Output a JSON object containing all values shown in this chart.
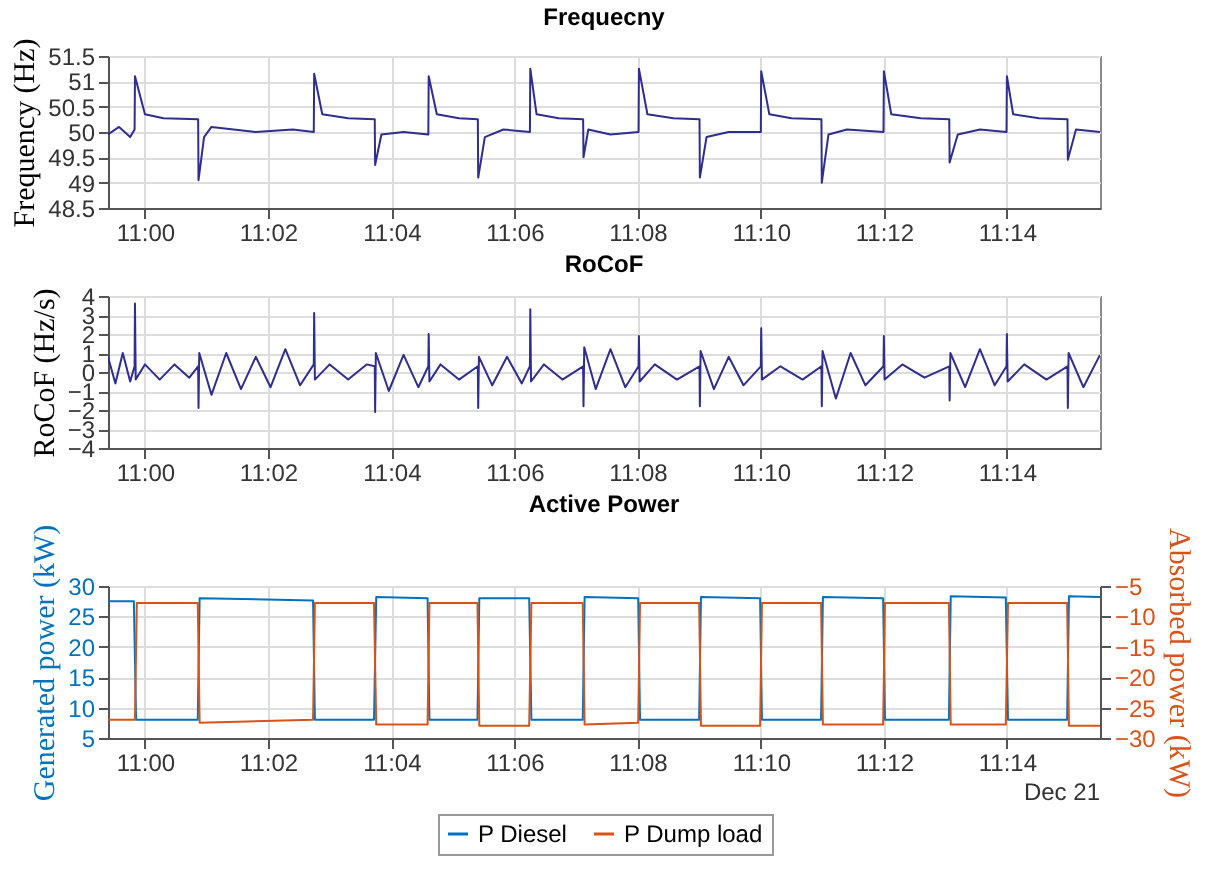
{
  "chart_data": [
    {
      "type": "line",
      "title": "Frequecny",
      "ylabel": "Frequency (Hz)",
      "grid": true,
      "xlim": [
        10.99,
        11.2585
      ],
      "xticks": [
        {
          "value": 11,
          "label": "11:00"
        },
        {
          "value": 11.0333,
          "label": "11:02"
        },
        {
          "value": 11.0667,
          "label": "11:04"
        },
        {
          "value": 11.1,
          "label": "11:06"
        },
        {
          "value": 11.1333,
          "label": "11:08"
        },
        {
          "value": 11.1667,
          "label": "11:10"
        },
        {
          "value": 11.2,
          "label": "11:12"
        },
        {
          "value": 11.2333,
          "label": "11:14"
        }
      ],
      "ylim": [
        48.5,
        51.5
      ],
      "yticks": [
        48.5,
        49,
        49.5,
        50,
        50.5,
        51,
        51.5
      ],
      "series": [
        {
          "color": "#2e2e8f",
          "x": [
            10.99,
            10.993,
            10.996,
            10.9972,
            10.9973,
            11.0,
            11.005,
            11.0144,
            11.0145,
            11.016,
            11.018,
            11.03,
            11.04,
            11.0457,
            11.0458,
            11.048,
            11.055,
            11.0622,
            11.0623,
            11.064,
            11.07,
            11.0767,
            11.0768,
            11.079,
            11.085,
            11.0901,
            11.0902,
            11.092,
            11.097,
            11.1042,
            11.1043,
            11.106,
            11.112,
            11.1186,
            11.1187,
            11.12,
            11.126,
            11.1336,
            11.1337,
            11.136,
            11.143,
            11.1501,
            11.1502,
            11.152,
            11.158,
            11.1667,
            11.1668,
            11.169,
            11.175,
            11.1831,
            11.1832,
            11.185,
            11.19,
            11.1999,
            11.2,
            11.202,
            11.21,
            11.2177,
            11.2178,
            11.22,
            11.226,
            11.2332,
            11.2333,
            11.235,
            11.242,
            11.2497,
            11.2498,
            11.252,
            11.2585
          ],
          "values": [
            49.95,
            50.1,
            49.9,
            50.05,
            51.1,
            50.35,
            50.27,
            50.25,
            49.05,
            49.9,
            50.1,
            50.0,
            50.05,
            50.0,
            51.15,
            50.35,
            50.27,
            50.25,
            49.35,
            49.95,
            50.0,
            49.95,
            51.1,
            50.35,
            50.27,
            50.25,
            49.1,
            49.9,
            50.05,
            50.0,
            51.25,
            50.35,
            50.27,
            50.25,
            49.5,
            50.05,
            49.95,
            50.0,
            51.25,
            50.35,
            50.27,
            50.25,
            49.1,
            49.9,
            50.0,
            50.0,
            51.2,
            50.35,
            50.27,
            50.25,
            49.0,
            49.95,
            50.05,
            50.0,
            51.2,
            50.35,
            50.27,
            50.25,
            49.4,
            49.95,
            50.05,
            50.0,
            51.1,
            50.35,
            50.27,
            50.25,
            49.45,
            50.05,
            50.0
          ]
        }
      ]
    },
    {
      "type": "line",
      "title": "RoCoF",
      "ylabel": "RoCoF (Hz/s)",
      "grid": true,
      "xlim": [
        10.99,
        11.2585
      ],
      "xticks": [
        {
          "value": 11,
          "label": "11:00"
        },
        {
          "value": 11.0333,
          "label": "11:02"
        },
        {
          "value": 11.0667,
          "label": "11:04"
        },
        {
          "value": 11.1,
          "label": "11:06"
        },
        {
          "value": 11.1333,
          "label": "11:08"
        },
        {
          "value": 11.1667,
          "label": "11:10"
        },
        {
          "value": 11.2,
          "label": "11:12"
        },
        {
          "value": 11.2333,
          "label": "11:14"
        }
      ],
      "ylim": [
        -4,
        4
      ],
      "yticks": [
        -4,
        -3,
        -2,
        -1,
        0,
        1,
        2,
        3,
        4
      ],
      "series": [
        {
          "color": "#2e2e8f",
          "x": [
            10.99,
            10.992,
            10.994,
            10.996,
            10.9972,
            10.9973,
            10.9975,
            11.0,
            11.004,
            11.008,
            11.012,
            11.0144,
            11.0145,
            11.0147,
            11.018,
            11.022,
            11.026,
            11.03,
            11.034,
            11.038,
            11.042,
            11.0457,
            11.0458,
            11.046,
            11.05,
            11.055,
            11.06,
            11.0622,
            11.0623,
            11.0625,
            11.066,
            11.07,
            11.074,
            11.0767,
            11.0768,
            11.077,
            11.08,
            11.085,
            11.0901,
            11.0902,
            11.0904,
            11.094,
            11.098,
            11.102,
            11.1042,
            11.1043,
            11.1045,
            11.108,
            11.113,
            11.1186,
            11.1187,
            11.1189,
            11.122,
            11.126,
            11.13,
            11.1336,
            11.1337,
            11.1339,
            11.138,
            11.144,
            11.1501,
            11.1502,
            11.1504,
            11.154,
            11.158,
            11.162,
            11.1667,
            11.1668,
            11.167,
            11.172,
            11.178,
            11.1831,
            11.1832,
            11.1834,
            11.187,
            11.191,
            11.195,
            11.1999,
            11.2,
            11.2002,
            11.205,
            11.211,
            11.2177,
            11.2178,
            11.218,
            11.222,
            11.226,
            11.23,
            11.2332,
            11.2333,
            11.2335,
            11.238,
            11.244,
            11.2497,
            11.2498,
            11.25,
            11.254,
            11.2585
          ],
          "values": [
            0.8,
            -0.6,
            1.0,
            -0.5,
            0.3,
            3.6,
            -0.4,
            0.4,
            -0.4,
            0.4,
            -0.3,
            0.3,
            -1.9,
            1.0,
            -1.2,
            1.0,
            -0.9,
            0.8,
            -0.8,
            1.2,
            -0.7,
            0.4,
            3.1,
            -0.4,
            0.4,
            -0.4,
            0.4,
            0.3,
            -2.1,
            1.0,
            -1.0,
            0.9,
            -0.8,
            0.3,
            2.0,
            -0.5,
            0.4,
            -0.4,
            0.3,
            -1.9,
            0.8,
            -0.7,
            0.8,
            -0.6,
            0.3,
            3.3,
            -0.5,
            0.4,
            -0.4,
            0.3,
            -1.8,
            1.3,
            -0.9,
            1.2,
            -0.8,
            0.3,
            1.9,
            -0.5,
            0.4,
            -0.4,
            0.3,
            -1.8,
            1.1,
            -0.9,
            0.8,
            -0.7,
            0.3,
            2.3,
            -0.4,
            0.3,
            -0.4,
            0.3,
            -1.8,
            1.1,
            -1.4,
            1.0,
            -0.7,
            0.3,
            1.9,
            -0.4,
            0.4,
            -0.3,
            0.3,
            -1.5,
            1.0,
            -0.8,
            1.2,
            -0.7,
            0.3,
            2.0,
            -0.5,
            0.4,
            -0.4,
            0.3,
            -1.9,
            1.0,
            -0.8,
            0.9
          ]
        }
      ]
    },
    {
      "type": "line",
      "title": "Active Power",
      "ylabel": "Generated power (kW)",
      "y2label": "Absorbed power (kW)",
      "grid": true,
      "legend": "bottom",
      "annotations": [
        "Dec 21"
      ],
      "xlim": [
        10.99,
        11.2585
      ],
      "xticks": [
        {
          "value": 11,
          "label": "11:00"
        },
        {
          "value": 11.0333,
          "label": "11:02"
        },
        {
          "value": 11.0667,
          "label": "11:04"
        },
        {
          "value": 11.1,
          "label": "11:06"
        },
        {
          "value": 11.1333,
          "label": "11:08"
        },
        {
          "value": 11.1667,
          "label": "11:10"
        },
        {
          "value": 11.2,
          "label": "11:12"
        },
        {
          "value": 11.2333,
          "label": "11:14"
        }
      ],
      "ylim": [
        5,
        30
      ],
      "yticks": [
        5,
        10,
        15,
        20,
        25,
        30
      ],
      "y2lim": [
        -30,
        -5
      ],
      "y2ticks": [
        -30,
        -25,
        -20,
        -15,
        -10,
        -5
      ],
      "series": [
        {
          "name": "P Diesel",
          "color": "#0072bd",
          "x": [
            10.99,
            10.997,
            10.9976,
            11.0143,
            11.0148,
            11.0455,
            11.046,
            11.062,
            11.0626,
            11.0765,
            11.077,
            11.09,
            11.0905,
            11.104,
            11.1046,
            11.1185,
            11.119,
            11.1335,
            11.134,
            11.15,
            11.1505,
            11.1665,
            11.167,
            11.183,
            11.1835,
            11.1998,
            11.2003,
            11.2176,
            11.2181,
            11.233,
            11.2336,
            11.2496,
            11.2501,
            11.2585
          ],
          "values": [
            27.5,
            27.5,
            8,
            8,
            28,
            27.6,
            8,
            8,
            28.2,
            28,
            8,
            8,
            28,
            28,
            8,
            8,
            28.2,
            28,
            8,
            8,
            28.2,
            28,
            8,
            8,
            28.2,
            28,
            8,
            8,
            28.3,
            28.1,
            8,
            8,
            28.3,
            28.2
          ]
        },
        {
          "name": "P Dump load",
          "color": "#d95319",
          "axis": "y2",
          "x": [
            10.99,
            10.9973,
            10.9978,
            11.0143,
            11.0148,
            11.0455,
            11.046,
            11.062,
            11.0626,
            11.0765,
            11.077,
            11.09,
            11.0905,
            11.104,
            11.1046,
            11.1185,
            11.119,
            11.1335,
            11.134,
            11.15,
            11.1505,
            11.1665,
            11.167,
            11.183,
            11.1835,
            11.1998,
            11.2003,
            11.2176,
            11.2181,
            11.233,
            11.2336,
            11.2496,
            11.2501,
            11.2585
          ],
          "values": [
            -27,
            -27,
            -7.8,
            -7.8,
            -27.5,
            -27,
            -7.8,
            -7.8,
            -27.8,
            -27.8,
            -7.8,
            -7.8,
            -28,
            -28,
            -7.8,
            -7.8,
            -27.8,
            -27.5,
            -7.8,
            -7.8,
            -28,
            -28,
            -7.8,
            -7.8,
            -27.8,
            -27.8,
            -7.8,
            -7.8,
            -27.8,
            -27.8,
            -7.8,
            -7.8,
            -28,
            -28
          ]
        }
      ]
    }
  ]
}
